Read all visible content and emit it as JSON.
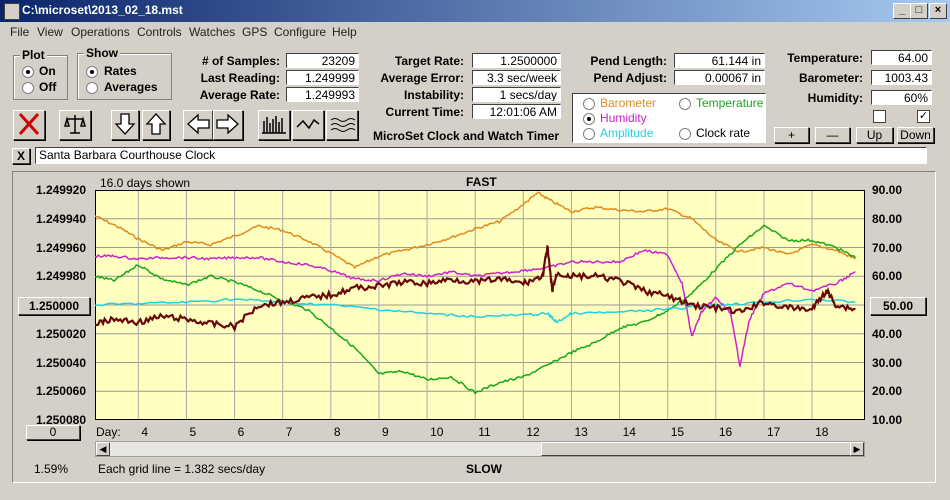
{
  "window": {
    "title": "C:\\microset\\2013_02_18.mst",
    "minimize": "_",
    "maximize": "□",
    "close": "×"
  },
  "menu": [
    "File",
    "View",
    "Operations",
    "Controls",
    "Watches",
    "GPS",
    "Configure",
    "Help"
  ],
  "plot_group": {
    "label": "Plot",
    "on_label": "On",
    "off_label": "Off",
    "selected": "On"
  },
  "show_group": {
    "label": "Show",
    "rates_label": "Rates",
    "averages_label": "Averages",
    "selected": "Rates"
  },
  "stats": {
    "samples_label": "# of Samples:",
    "samples_value": "23209",
    "last_label": "Last Reading:",
    "last_value": "1.249999",
    "avg_label": "Average Rate:",
    "avg_value": "1.249993",
    "target_label": "Target Rate:",
    "target_value": "1.2500000",
    "avgerr_label": "Average Error:",
    "avgerr_value": "3.3 sec/week",
    "instab_label": "Instability:",
    "instab_value": "1 secs/day",
    "time_label": "Current Time:",
    "time_value": "12:01:06 AM",
    "pendlen_label": "Pend Length:",
    "pendlen_value": "61.144 in",
    "pendadj_label": "Pend Adjust:",
    "pendadj_value": "0.00067 in",
    "temp_label": "Temperature:",
    "temp_value": "64.00",
    "baro_label": "Barometer:",
    "baro_value": "1003.43",
    "humid_label": "Humidity:",
    "humid_value": "60%"
  },
  "app_title": "MicroSet Clock and Watch Timer",
  "right_series": {
    "options": [
      "Barometer",
      "Temperature",
      "Humidity",
      "Amplitude",
      "Clock rate"
    ],
    "selected": "Humidity",
    "colors": {
      "Barometer": "#e08a1e",
      "Temperature": "#18a818",
      "Humidity": "#cc22cc",
      "Amplitude": "#20d0e0",
      "Clock rate": "#000000"
    }
  },
  "small_buttons": {
    "plus": "+",
    "minus": "—",
    "up": "Up",
    "down": "Down"
  },
  "checkboxes": {
    "left": false,
    "right": true
  },
  "clock_name": "Santa Barbara Courthouse Clock",
  "close_name_label": "X",
  "chart_data": {
    "type": "line",
    "top_label": "FAST",
    "bottom_label": "SLOW",
    "days_shown": "16.0 days shown",
    "grid_info": "Each grid line = 1.382 secs/day",
    "percent": "1.59%",
    "left_scroll_value": "0",
    "center_left_value": "1.250000",
    "center_right_value": "50.00",
    "xlabel": "Day:",
    "x_ticks": [
      "4",
      "5",
      "6",
      "7",
      "8",
      "9",
      "10",
      "11",
      "12",
      "13",
      "14",
      "15",
      "16",
      "17",
      "18"
    ],
    "y_left_ticks": [
      "1.249920",
      "1.249940",
      "1.249960",
      "1.249980",
      "1.250000",
      "1.250020",
      "1.250040",
      "1.250060",
      "1.250080"
    ],
    "y_right_ticks": [
      "90.00",
      "80.00",
      "70.00",
      "60.00",
      "50.00",
      "40.00",
      "30.00",
      "20.00",
      "10.00"
    ],
    "xlim": [
      3.1,
      19.1
    ],
    "ylim_left": [
      1.24992,
      1.25008
    ],
    "ylim_right": [
      10,
      90
    ],
    "series": [
      {
        "name": "Barometer",
        "color": "#e08a1e",
        "x": [
          3.1,
          3.6,
          4.0,
          4.5,
          5.0,
          5.5,
          6.0,
          6.5,
          7.0,
          7.5,
          8.0,
          8.5,
          9.0,
          9.5,
          10.0,
          10.5,
          11.0,
          11.5,
          12.0,
          12.3,
          12.6,
          13.0,
          13.5,
          14.0,
          14.5,
          15.0,
          15.5,
          16.0,
          16.5,
          17.0,
          17.5,
          18.0,
          18.5,
          18.9
        ],
        "y": [
          1.249938,
          1.249946,
          1.249954,
          1.249962,
          1.249956,
          1.249958,
          1.249952,
          1.249945,
          1.249948,
          1.249955,
          1.249964,
          1.249974,
          1.249966,
          1.249962,
          1.249958,
          1.249953,
          1.249947,
          1.249942,
          1.24993,
          1.249922,
          1.249928,
          1.249935,
          1.249932,
          1.249934,
          1.249935,
          1.249933,
          1.24994,
          1.249955,
          1.249963,
          1.24996,
          1.249965,
          1.249958,
          1.249962,
          1.249968
        ]
      },
      {
        "name": "Temperature",
        "color": "#18a818",
        "x": [
          3.1,
          3.5,
          4.0,
          4.5,
          5.0,
          5.5,
          6.0,
          6.5,
          7.0,
          7.5,
          8.0,
          8.5,
          9.0,
          9.5,
          10.0,
          10.5,
          11.0,
          11.5,
          12.0,
          12.5,
          13.0,
          13.5,
          14.0,
          14.5,
          15.0,
          15.5,
          16.0,
          16.5,
          17.0,
          17.5,
          18.0,
          18.5,
          18.9
        ],
        "y": [
          1.24998,
          1.249983,
          1.249972,
          1.249982,
          1.249986,
          1.24998,
          1.249984,
          1.24999,
          1.249997,
          1.250003,
          1.250016,
          1.25003,
          1.250048,
          1.250046,
          1.250052,
          1.25005,
          1.250061,
          1.250054,
          1.25005,
          1.250042,
          1.250033,
          1.250026,
          1.250016,
          1.250012,
          1.250004,
          1.249992,
          1.249975,
          1.249958,
          1.249945,
          1.249955,
          1.249955,
          1.24996,
          1.249967
        ]
      },
      {
        "name": "Humidity",
        "color": "#cc22cc",
        "x": [
          3.1,
          3.5,
          4.0,
          4.5,
          5.0,
          5.5,
          6.0,
          6.5,
          7.0,
          7.5,
          8.0,
          8.5,
          9.0,
          9.5,
          10.0,
          10.5,
          11.0,
          11.5,
          12.0,
          12.5,
          13.0,
          13.5,
          14.0,
          14.5,
          15.0,
          15.3,
          15.5,
          15.7,
          16.0,
          16.3,
          16.5,
          16.7,
          17.0,
          17.5,
          18.0,
          18.5,
          18.9
        ],
        "y": [
          1.249966,
          1.249966,
          1.249968,
          1.249967,
          1.249967,
          1.249968,
          1.249967,
          1.249967,
          1.24997,
          1.249972,
          1.249976,
          1.249982,
          1.249983,
          1.249978,
          1.24998,
          1.249977,
          1.24998,
          1.249978,
          1.249976,
          1.249974,
          1.24997,
          1.24997,
          1.24997,
          1.249962,
          1.249965,
          1.249985,
          1.250022,
          1.250005,
          1.249995,
          1.250005,
          1.250042,
          1.25001,
          1.249992,
          1.249985,
          1.24999,
          1.249985,
          1.249977
        ]
      },
      {
        "name": "Amplitude",
        "color": "#20d0e0",
        "x": [
          3.1,
          4.0,
          5.0,
          6.0,
          7.0,
          8.0,
          9.0,
          10.0,
          11.0,
          12.0,
          12.5,
          12.7,
          13.0,
          14.0,
          15.0,
          16.0,
          17.0,
          18.0,
          18.9
        ],
        "y": [
          1.25,
          1.249999,
          1.249998,
          1.249996,
          1.249998,
          1.25,
          1.250003,
          1.250006,
          1.250008,
          1.250007,
          1.250006,
          1.250012,
          1.250006,
          1.250005,
          1.250003,
          1.25,
          1.249998,
          1.249996,
          1.249998
        ]
      },
      {
        "name": "Clock rate",
        "color": "#6a0808",
        "x": [
          3.1,
          3.5,
          4.0,
          4.5,
          5.0,
          5.5,
          6.0,
          6.5,
          7.0,
          7.5,
          8.0,
          8.5,
          9.0,
          9.5,
          10.0,
          10.5,
          11.0,
          11.5,
          12.0,
          12.4,
          12.5,
          12.6,
          12.7,
          13.0,
          13.5,
          14.0,
          14.5,
          15.0,
          15.5,
          16.0,
          16.5,
          17.0,
          17.5,
          18.0,
          18.3,
          18.5,
          18.9
        ],
        "y": [
          1.250013,
          1.25001,
          1.250012,
          1.250008,
          1.25001,
          1.250013,
          1.250015,
          1.25,
          1.249998,
          1.249995,
          1.249993,
          1.249988,
          1.249987,
          1.249984,
          1.249985,
          1.249982,
          1.249984,
          1.249982,
          1.249985,
          1.24998,
          1.24996,
          1.24999,
          1.249978,
          1.24998,
          1.24998,
          1.249983,
          1.24999,
          1.249994,
          1.25,
          1.250002,
          1.250005,
          1.249998,
          1.250002,
          1.250003,
          1.24999,
          1.25,
          1.250003
        ]
      }
    ]
  }
}
